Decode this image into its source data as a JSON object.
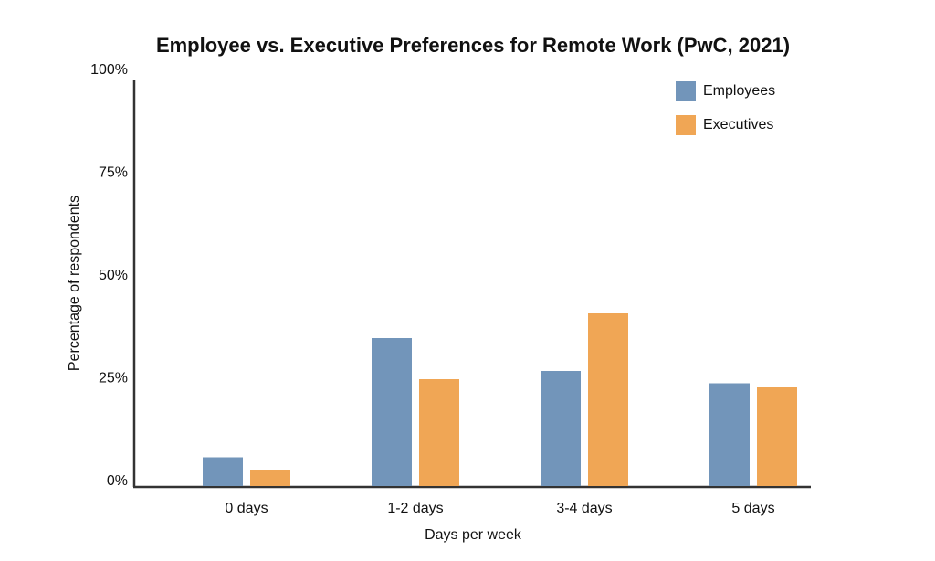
{
  "chart_data": {
    "type": "bar",
    "title": "Employee vs. Executive Preferences for Remote Work (PwC, 2021)",
    "x_label": "Days per week",
    "y_label": "Percentage of respondents",
    "categories": [
      "0 days",
      "1-2 days",
      "3-4 days",
      "5 days"
    ],
    "series": [
      {
        "name": "Employees",
        "color": "#7295ba",
        "values": [
          7,
          36,
          28,
          25
        ]
      },
      {
        "name": "Executives",
        "color": "#f0a655",
        "values": [
          4,
          26,
          42,
          24
        ]
      }
    ],
    "ylim": [
      0,
      100
    ],
    "yticks": [
      {
        "value": 0,
        "label": "0%"
      },
      {
        "value": 25,
        "label": "25%"
      },
      {
        "value": 50,
        "label": "50%"
      },
      {
        "value": 75,
        "label": "75%"
      },
      {
        "value": 100,
        "label": "100%"
      }
    ],
    "grid": false,
    "legend": "top-right"
  }
}
